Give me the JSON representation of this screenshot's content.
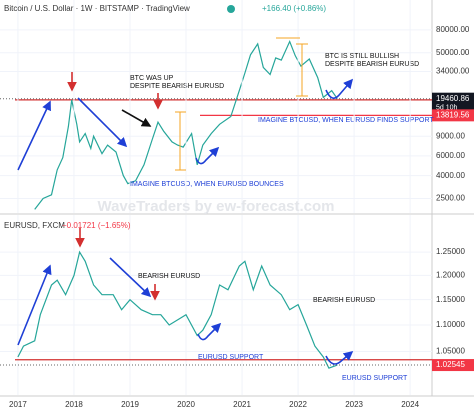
{
  "chart_data": [
    {
      "type": "line",
      "title": "Bitcoin / U.S. Dollar · 1W · BITSTAMP · TradingView",
      "change": "+166.40 (+0.86%)",
      "countdown": "5d 10h",
      "watermark": "WaveTraders by ew-forecast.com",
      "log_scale": true,
      "color": "#26a69a",
      "x": [
        2017.3,
        2017.45,
        2017.6,
        2017.7,
        2017.8,
        2017.9,
        2017.96,
        2018.05,
        2018.1,
        2018.2,
        2018.3,
        2018.35,
        2018.5,
        2018.6,
        2018.75,
        2018.88,
        2018.96,
        2019.1,
        2019.25,
        2019.4,
        2019.5,
        2019.6,
        2019.75,
        2019.85,
        2019.95,
        2020.1,
        2020.2,
        2020.3,
        2020.45,
        2020.6,
        2020.8,
        2020.95,
        2021.05,
        2021.15,
        2021.28,
        2021.38,
        2021.5,
        2021.6,
        2021.7,
        2021.85,
        2021.95,
        2022.05,
        2022.2,
        2022.35,
        2022.45,
        2022.6,
        2022.7
      ],
      "values": [
        2000,
        2500,
        2700,
        4500,
        5800,
        11000,
        19000,
        11500,
        8000,
        9500,
        7000,
        9000,
        6300,
        7500,
        6500,
        4000,
        3400,
        3600,
        5000,
        8500,
        12000,
        10000,
        8000,
        7500,
        7200,
        9500,
        5000,
        7500,
        9500,
        11500,
        13500,
        23000,
        33000,
        48000,
        60000,
        37000,
        32000,
        45000,
        43000,
        63000,
        47000,
        38000,
        44000,
        30000,
        20000,
        23000,
        19460.86
      ],
      "xlim": [
        2016.68,
        2024.39
      ],
      "ylim": [
        1856,
        148000
      ],
      "yticks": [
        {
          "value": 80000,
          "label": "80000.00"
        },
        {
          "value": 50000,
          "label": "50000.00"
        },
        {
          "value": 34000,
          "label": "34000.00"
        },
        {
          "value": 9000,
          "label": "9000.00"
        },
        {
          "value": 6000,
          "label": "6000.00"
        },
        {
          "value": 4000,
          "label": "4000.00"
        },
        {
          "value": 2500,
          "label": "2500.00"
        }
      ],
      "hlines": [
        {
          "value": 19000,
          "color": "#d32f2f"
        },
        {
          "value": 13819.56,
          "color": "#f23645"
        }
      ],
      "annotations": [
        {
          "lines": [
            "BTC WAS UP",
            "DESPITE BEARISH EURUSD"
          ],
          "color": "#111"
        },
        {
          "lines": [
            "BTC IS STILL BULLISH",
            "DESPITE BEARISH EURUSD"
          ],
          "color": "#111"
        },
        {
          "lines": [
            "IMAGINE BTCUSD, WHEN EURUSD FINDS SUPPORT"
          ],
          "color": "#1e3fd6"
        },
        {
          "lines": [
            "IMAGINE BTCUSD, WHEN EURUSD BOUNCES"
          ],
          "color": "#1e3fd6"
        }
      ]
    },
    {
      "type": "line",
      "title": "EURUSD, FXCM",
      "change": "−0.01721 (−1.65%)",
      "log_scale": true,
      "color": "#26a69a",
      "x": [
        2017.0,
        2017.1,
        2017.3,
        2017.4,
        2017.6,
        2017.7,
        2017.85,
        2018.0,
        2018.1,
        2018.2,
        2018.35,
        2018.5,
        2018.7,
        2018.85,
        2019.0,
        2019.2,
        2019.4,
        2019.55,
        2019.7,
        2019.85,
        2020.0,
        2020.2,
        2020.3,
        2020.45,
        2020.6,
        2020.75,
        2020.95,
        2021.05,
        2021.2,
        2021.35,
        2021.5,
        2021.7,
        2021.85,
        2022.0,
        2022.15,
        2022.3,
        2022.45,
        2022.55,
        2022.7
      ],
      "values": [
        1.04,
        1.06,
        1.07,
        1.12,
        1.18,
        1.19,
        1.16,
        1.2,
        1.25,
        1.23,
        1.18,
        1.16,
        1.16,
        1.13,
        1.15,
        1.13,
        1.12,
        1.12,
        1.1,
        1.11,
        1.12,
        1.08,
        1.09,
        1.12,
        1.18,
        1.17,
        1.22,
        1.23,
        1.17,
        1.22,
        1.18,
        1.16,
        1.13,
        1.14,
        1.1,
        1.06,
        1.04,
        1.02,
        1.02545
      ],
      "xlim": [
        2016.68,
        2024.39
      ],
      "ylim": [
        0.973,
        1.334
      ],
      "yticks": [
        {
          "value": 1.25,
          "label": "1.25000"
        },
        {
          "value": 1.2,
          "label": "1.20000"
        },
        {
          "value": 1.15,
          "label": "1.15000"
        },
        {
          "value": 1.1,
          "label": "1.10000"
        },
        {
          "value": 1.05,
          "label": "1.05000"
        }
      ],
      "xticks": [
        2017,
        2018,
        2019,
        2020,
        2021,
        2022,
        2023,
        2024
      ],
      "hlines": [
        {
          "value": 1.035,
          "color": "#d32f2f"
        }
      ],
      "annotations": [
        {
          "lines": [
            "BEARISH EURUSD"
          ],
          "color": "#111"
        },
        {
          "lines": [
            "BEARISH EURUSD"
          ],
          "color": "#111"
        },
        {
          "lines": [
            "EURUSD SUPPORT"
          ],
          "color": "#1e3fd6"
        },
        {
          "lines": [
            "EURUSD SUPPORT"
          ],
          "color": "#1e3fd6"
        }
      ]
    }
  ]
}
